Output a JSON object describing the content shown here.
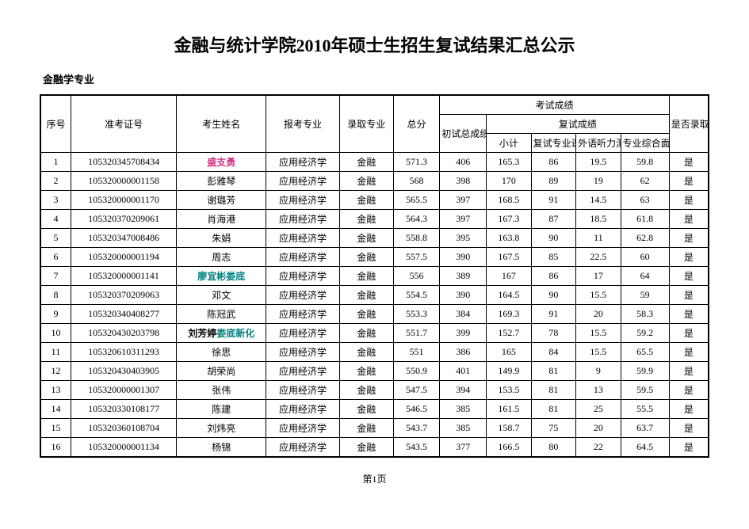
{
  "title": "金融与统计学院2010年硕士生招生复试结果汇总公示",
  "section": "金融学专业",
  "pageLabel": "第1页",
  "headers": {
    "seq": "序号",
    "examId": "准考证号",
    "name": "考生姓名",
    "applyMajor": "报考专业",
    "admitMajor": "录取专业",
    "total": "总分",
    "examGroup": "考试成绩",
    "retestGroup": "复试成绩",
    "initTotal": "初试总成绩",
    "subTotal": "小计",
    "retestCourse": "复试专业课",
    "listening": "外语听力测试",
    "interview": "专业综合面试",
    "admitted": "是否录取"
  },
  "rows": [
    {
      "seq": "1",
      "id": "105320345708434",
      "name": "盛支勇",
      "nameClass": "hl-pink",
      "apply": "应用经济学",
      "admit": "金融",
      "total": "571.3",
      "init": "406",
      "sub": "165.3",
      "course": "86",
      "listen": "19.5",
      "interview": "59.8",
      "ok": "是"
    },
    {
      "seq": "2",
      "id": "105320000001158",
      "name": "彭雅琴",
      "nameClass": "",
      "apply": "应用经济学",
      "admit": "金融",
      "total": "568",
      "init": "398",
      "sub": "170",
      "course": "89",
      "listen": "19",
      "interview": "62",
      "ok": "是"
    },
    {
      "seq": "3",
      "id": "105320000001170",
      "name": "谢璐芳",
      "nameClass": "",
      "apply": "应用经济学",
      "admit": "金融",
      "total": "565.5",
      "init": "397",
      "sub": "168.5",
      "course": "91",
      "listen": "14.5",
      "interview": "63",
      "ok": "是"
    },
    {
      "seq": "4",
      "id": "105320370209061",
      "name": "肖海港",
      "nameClass": "",
      "apply": "应用经济学",
      "admit": "金融",
      "total": "564.3",
      "init": "397",
      "sub": "167.3",
      "course": "87",
      "listen": "18.5",
      "interview": "61.8",
      "ok": "是"
    },
    {
      "seq": "5",
      "id": "105320347008486",
      "name": "朱娟",
      "nameClass": "",
      "apply": "应用经济学",
      "admit": "金融",
      "total": "558.8",
      "init": "395",
      "sub": "163.8",
      "course": "90",
      "listen": "11",
      "interview": "62.8",
      "ok": "是"
    },
    {
      "seq": "6",
      "id": "105320000001194",
      "name": "周志",
      "nameClass": "",
      "apply": "应用经济学",
      "admit": "金融",
      "total": "557.5",
      "init": "390",
      "sub": "167.5",
      "course": "85",
      "listen": "22.5",
      "interview": "60",
      "ok": "是"
    },
    {
      "seq": "7",
      "id": "105320000001141",
      "name": "廖宜彬娄底",
      "nameClass": "hl-teal",
      "apply": "应用经济学",
      "admit": "金融",
      "total": "556",
      "init": "389",
      "sub": "167",
      "course": "86",
      "listen": "17",
      "interview": "64",
      "ok": "是"
    },
    {
      "seq": "8",
      "id": "105320370209063",
      "name": "邓文",
      "nameClass": "",
      "apply": "应用经济学",
      "admit": "金融",
      "total": "554.5",
      "init": "390",
      "sub": "164.5",
      "course": "90",
      "listen": "15.5",
      "interview": "59",
      "ok": "是"
    },
    {
      "seq": "9",
      "id": "105320340408277",
      "name": "陈冠武",
      "nameClass": "",
      "apply": "应用经济学",
      "admit": "金融",
      "total": "553.3",
      "init": "384",
      "sub": "169.3",
      "course": "91",
      "listen": "20",
      "interview": "58.3",
      "ok": "是"
    },
    {
      "seq": "10",
      "id": "105320430203798",
      "name": "刘芳婷娄底新化",
      "nameClass": "hl-part-teal",
      "apply": "应用经济学",
      "admit": "金融",
      "total": "551.7",
      "init": "399",
      "sub": "152.7",
      "course": "78",
      "listen": "15.5",
      "interview": "59.2",
      "ok": "是"
    },
    {
      "seq": "11",
      "id": "105320610311293",
      "name": "徐思",
      "nameClass": "",
      "apply": "应用经济学",
      "admit": "金融",
      "total": "551",
      "init": "386",
      "sub": "165",
      "course": "84",
      "listen": "15.5",
      "interview": "65.5",
      "ok": "是"
    },
    {
      "seq": "12",
      "id": "105320430403905",
      "name": "胡荣尚",
      "nameClass": "",
      "apply": "应用经济学",
      "admit": "金融",
      "total": "550.9",
      "init": "401",
      "sub": "149.9",
      "course": "81",
      "listen": "9",
      "interview": "59.9",
      "ok": "是"
    },
    {
      "seq": "13",
      "id": "105320000001307",
      "name": "张伟",
      "nameClass": "",
      "apply": "应用经济学",
      "admit": "金融",
      "total": "547.5",
      "init": "394",
      "sub": "153.5",
      "course": "81",
      "listen": "13",
      "interview": "59.5",
      "ok": "是"
    },
    {
      "seq": "14",
      "id": "105320330108177",
      "name": "陈建",
      "nameClass": "",
      "apply": "应用经济学",
      "admit": "金融",
      "total": "546.5",
      "init": "385",
      "sub": "161.5",
      "course": "81",
      "listen": "25",
      "interview": "55.5",
      "ok": "是"
    },
    {
      "seq": "15",
      "id": "105320360108704",
      "name": "刘炜亮",
      "nameClass": "",
      "apply": "应用经济学",
      "admit": "金融",
      "total": "543.7",
      "init": "385",
      "sub": "158.7",
      "course": "75",
      "listen": "20",
      "interview": "63.7",
      "ok": "是"
    },
    {
      "seq": "16",
      "id": "105320000001134",
      "name": "杨锦",
      "nameClass": "",
      "apply": "应用经济学",
      "admit": "金融",
      "total": "543.5",
      "init": "377",
      "sub": "166.5",
      "course": "80",
      "listen": "22",
      "interview": "64.5",
      "ok": "是"
    }
  ]
}
